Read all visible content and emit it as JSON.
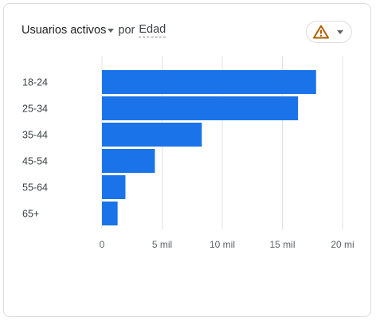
{
  "card": {
    "metric_label": "Usuarios activos",
    "por_label": "por",
    "dimension_label": "Edad",
    "warning_icon": "warning-icon",
    "dropdown_icon": "chevron-down-icon"
  },
  "colors": {
    "bar": "#1a73e8",
    "grid": "#e0e0e0",
    "warning": "#b06000"
  },
  "chart_data": {
    "type": "bar",
    "orientation": "horizontal",
    "categories": [
      "18-24",
      "25-34",
      "35-44",
      "45-54",
      "55-64",
      "65+"
    ],
    "values": [
      17800,
      16300,
      8300,
      4400,
      1950,
      1300
    ],
    "xlim": [
      0,
      20000
    ],
    "xticks": [
      0,
      5000,
      10000,
      15000,
      20000
    ],
    "xtick_labels": [
      "0",
      "5 mil",
      "10 mil",
      "15 mil",
      "20 mi"
    ],
    "grid": true
  }
}
